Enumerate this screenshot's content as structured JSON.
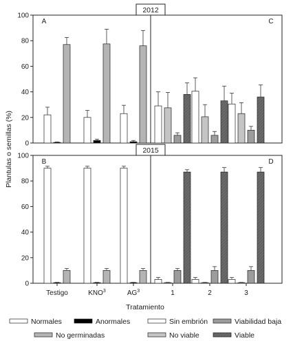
{
  "chart_data": {
    "type": "bar",
    "ylabel": "Plantulas o semillas (%)",
    "xlabel": "Tratamiento",
    "ylim": [
      0,
      100
    ],
    "yticks": [
      0,
      20,
      40,
      60,
      80,
      100
    ],
    "years": [
      "2012",
      "2015"
    ],
    "left_categories": [
      "Testigo",
      "KNO3",
      "AG3"
    ],
    "right_categories": [
      "1",
      "2",
      "3"
    ],
    "left_series": [
      {
        "name": "Normales",
        "color": "#ffffff"
      },
      {
        "name": "Anormales",
        "color": "#000000"
      },
      {
        "name": "No germinadas",
        "color": "#b4b4b4"
      }
    ],
    "right_series": [
      {
        "name": "Sin embrión",
        "color": "#ffffff"
      },
      {
        "name": "No viable",
        "color": "#c4c4c4"
      },
      {
        "name": "Viabilidad baja",
        "color": "#9c9c9c"
      },
      {
        "name": "Viable",
        "color": "#6a6a6a"
      }
    ],
    "panels": [
      {
        "letter": "A",
        "year": "2012",
        "side": "left",
        "values": [
          [
            22,
            0.5,
            77
          ],
          [
            20,
            2,
            77.5
          ],
          [
            23,
            1,
            76
          ]
        ],
        "errors": [
          [
            6,
            0.3,
            5.5
          ],
          [
            5.5,
            1,
            11.5
          ],
          [
            6.5,
            1,
            12
          ]
        ]
      },
      {
        "letter": "C",
        "year": "2012",
        "side": "right",
        "values": [
          [
            29,
            27.5,
            6,
            38
          ],
          [
            40.5,
            20.5,
            6,
            33
          ],
          [
            30.5,
            23,
            10,
            36
          ]
        ],
        "errors": [
          [
            11,
            12,
            2,
            9
          ],
          [
            10.5,
            9.5,
            3,
            11.5
          ],
          [
            8.5,
            8.5,
            3,
            9.5
          ]
        ]
      },
      {
        "letter": "B",
        "year": "2015",
        "side": "left",
        "values": [
          [
            90,
            0.5,
            10
          ],
          [
            90,
            0.5,
            10
          ],
          [
            90,
            0.5,
            10
          ]
        ],
        "errors": [
          [
            1.5,
            0.2,
            1.5
          ],
          [
            1.5,
            0.2,
            1.5
          ],
          [
            1.5,
            0.2,
            1.5
          ]
        ]
      },
      {
        "letter": "D",
        "year": "2015",
        "side": "right",
        "values": [
          [
            3,
            0.5,
            10,
            87
          ],
          [
            3,
            0.5,
            10,
            87
          ],
          [
            3,
            0.5,
            10,
            87
          ]
        ],
        "errors": [
          [
            1.5,
            0.2,
            1.5,
            1.8
          ],
          [
            1.5,
            0.2,
            3,
            3.5
          ],
          [
            1.5,
            0.2,
            3,
            3.5
          ]
        ]
      }
    ]
  }
}
